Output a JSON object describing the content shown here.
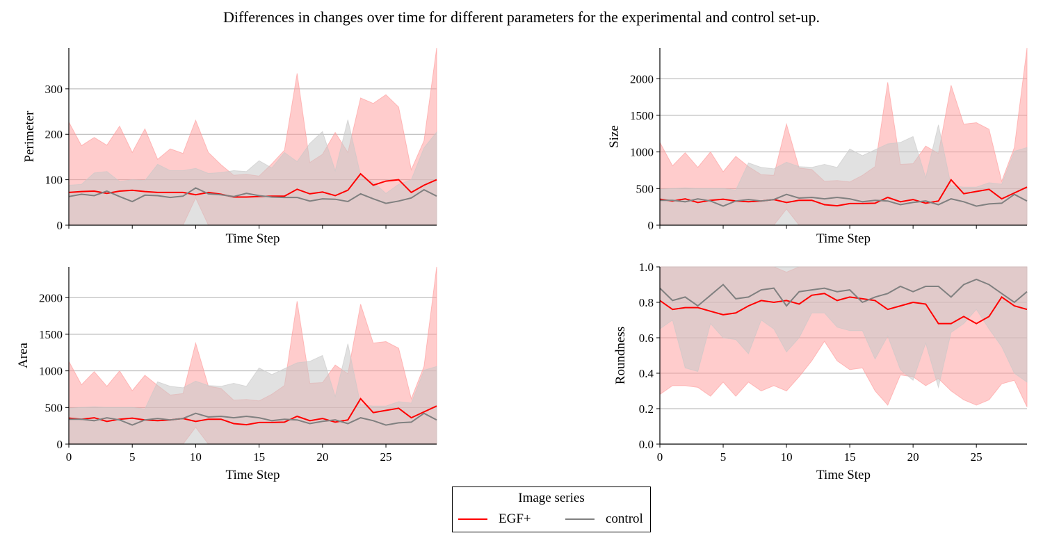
{
  "title": "Differences in changes over time for different parameters for the experimental and control set-up.",
  "legend": {
    "title": "Image series",
    "entries": [
      {
        "label": "EGF+",
        "color": "#ff0000"
      },
      {
        "label": "control",
        "color": "#808080"
      }
    ]
  },
  "colors": {
    "egf_line": "#ff0000",
    "egf_band": "#ff9999",
    "control_line": "#808080",
    "control_band": "#c8c8c8"
  },
  "chart_data": [
    {
      "type": "line",
      "ylabel": "Perimeter",
      "xlabel": "Time Step",
      "xlim": [
        0,
        29
      ],
      "ylim": [
        0,
        390
      ],
      "yticks": [
        0,
        100,
        200,
        300
      ],
      "x_ticklabels_shown": false,
      "grid": "y",
      "x": [
        0,
        1,
        2,
        3,
        4,
        5,
        6,
        7,
        8,
        9,
        10,
        11,
        12,
        13,
        14,
        15,
        16,
        17,
        18,
        19,
        20,
        21,
        22,
        23,
        24,
        25,
        26,
        27,
        28,
        29
      ],
      "series": [
        {
          "name": "EGF+",
          "values": [
            72,
            74,
            75,
            70,
            75,
            77,
            74,
            72,
            72,
            72,
            67,
            72,
            68,
            62,
            62,
            63,
            64,
            64,
            79,
            69,
            73,
            65,
            77,
            113,
            88,
            97,
            100,
            72,
            88,
            100
          ],
          "band_lower": [
            0,
            0,
            0,
            0,
            0,
            0,
            0,
            0,
            0,
            0,
            60,
            0,
            0,
            0,
            0,
            0,
            0,
            0,
            0,
            0,
            0,
            0,
            0,
            0,
            0,
            0,
            0,
            0,
            0,
            0
          ],
          "band_upper": [
            227,
            175,
            193,
            176,
            218,
            160,
            212,
            145,
            168,
            158,
            231,
            160,
            133,
            110,
            112,
            108,
            135,
            165,
            334,
            138,
            156,
            204,
            160,
            280,
            268,
            287,
            260,
            122,
            186,
            390
          ]
        },
        {
          "name": "control",
          "values": [
            63,
            68,
            65,
            75,
            63,
            52,
            66,
            65,
            61,
            64,
            82,
            69,
            67,
            63,
            70,
            65,
            62,
            61,
            61,
            53,
            58,
            57,
            52,
            69,
            58,
            48,
            53,
            60,
            78,
            64
          ],
          "band_lower": [
            0,
            0,
            0,
            0,
            0,
            0,
            0,
            0,
            0,
            0,
            0,
            0,
            0,
            0,
            0,
            0,
            0,
            0,
            0,
            0,
            0,
            0,
            0,
            0,
            0,
            0,
            0,
            0,
            0,
            0
          ],
          "band_upper": [
            88,
            90,
            115,
            118,
            96,
            100,
            98,
            134,
            120,
            120,
            125,
            114,
            116,
            120,
            118,
            142,
            126,
            160,
            140,
            180,
            206,
            120,
            232,
            110,
            95,
            70,
            90,
            100,
            170,
            205
          ]
        }
      ]
    },
    {
      "type": "line",
      "ylabel": "Size",
      "xlabel": "Time Step",
      "xlim": [
        0,
        29
      ],
      "ylim": [
        0,
        2420
      ],
      "yticks": [
        0,
        500,
        1000,
        1500,
        2000
      ],
      "x_ticklabels_shown": false,
      "grid": "y",
      "x": [
        0,
        1,
        2,
        3,
        4,
        5,
        6,
        7,
        8,
        9,
        10,
        11,
        12,
        13,
        14,
        15,
        16,
        17,
        18,
        19,
        20,
        21,
        22,
        23,
        24,
        25,
        26,
        27,
        28,
        29
      ],
      "series": [
        {
          "name": "EGF+",
          "values": [
            355,
            330,
            360,
            310,
            340,
            355,
            330,
            320,
            330,
            350,
            310,
            340,
            340,
            280,
            265,
            295,
            295,
            300,
            380,
            320,
            350,
            300,
            330,
            620,
            430,
            460,
            490,
            360,
            440,
            520
          ],
          "band_lower": [
            0,
            0,
            0,
            0,
            0,
            0,
            0,
            0,
            0,
            0,
            220,
            0,
            0,
            0,
            0,
            0,
            0,
            0,
            0,
            0,
            0,
            0,
            0,
            0,
            0,
            0,
            0,
            0,
            0,
            0
          ],
          "band_upper": [
            1130,
            810,
            990,
            790,
            1000,
            730,
            940,
            800,
            690,
            680,
            1380,
            780,
            760,
            600,
            610,
            590,
            680,
            800,
            1950,
            830,
            840,
            1080,
            980,
            1910,
            1380,
            1400,
            1310,
            600,
            1060,
            2420
          ]
        },
        {
          "name": "control",
          "values": [
            340,
            340,
            320,
            360,
            330,
            260,
            330,
            350,
            330,
            350,
            420,
            370,
            380,
            360,
            380,
            360,
            320,
            340,
            330,
            280,
            310,
            330,
            280,
            360,
            320,
            260,
            290,
            300,
            420,
            330
          ],
          "band_lower": [
            0,
            0,
            0,
            0,
            0,
            0,
            0,
            0,
            0,
            0,
            0,
            0,
            0,
            0,
            0,
            0,
            0,
            0,
            0,
            0,
            0,
            0,
            0,
            0,
            0,
            0,
            0,
            0,
            0,
            0
          ],
          "band_upper": [
            490,
            500,
            510,
            500,
            500,
            500,
            480,
            850,
            790,
            770,
            860,
            800,
            790,
            830,
            790,
            1040,
            950,
            1030,
            1110,
            1130,
            1210,
            650,
            1370,
            540,
            520,
            520,
            580,
            560,
            1010,
            1060
          ]
        }
      ]
    },
    {
      "type": "line",
      "ylabel": "Area",
      "xlabel": "Time Step",
      "xlim": [
        0,
        29
      ],
      "ylim": [
        0,
        2420
      ],
      "yticks": [
        0,
        500,
        1000,
        1500,
        2000
      ],
      "xticks": [
        0,
        5,
        10,
        15,
        20,
        25
      ],
      "x_ticklabels_shown": true,
      "grid": "y",
      "x": [
        0,
        1,
        2,
        3,
        4,
        5,
        6,
        7,
        8,
        9,
        10,
        11,
        12,
        13,
        14,
        15,
        16,
        17,
        18,
        19,
        20,
        21,
        22,
        23,
        24,
        25,
        26,
        27,
        28,
        29
      ],
      "series": [
        {
          "name": "EGF+",
          "values": [
            355,
            340,
            360,
            310,
            340,
            355,
            330,
            320,
            330,
            350,
            310,
            340,
            340,
            280,
            265,
            295,
            295,
            300,
            380,
            320,
            350,
            300,
            330,
            620,
            430,
            460,
            490,
            360,
            440,
            520
          ],
          "band_lower": [
            0,
            0,
            0,
            0,
            0,
            0,
            0,
            0,
            0,
            0,
            230,
            0,
            0,
            0,
            0,
            0,
            0,
            0,
            0,
            0,
            0,
            0,
            0,
            0,
            0,
            0,
            0,
            0,
            0,
            0
          ],
          "band_upper": [
            1130,
            810,
            990,
            790,
            1000,
            730,
            940,
            800,
            670,
            690,
            1380,
            790,
            760,
            600,
            610,
            590,
            680,
            800,
            1950,
            830,
            840,
            1080,
            960,
            1910,
            1380,
            1400,
            1310,
            620,
            1060,
            2420
          ]
        },
        {
          "name": "control",
          "values": [
            340,
            340,
            320,
            360,
            330,
            260,
            330,
            350,
            330,
            350,
            420,
            370,
            380,
            360,
            380,
            360,
            320,
            340,
            330,
            280,
            310,
            330,
            280,
            360,
            320,
            260,
            290,
            300,
            420,
            330
          ],
          "band_lower": [
            0,
            0,
            0,
            0,
            0,
            0,
            0,
            0,
            0,
            0,
            0,
            0,
            0,
            0,
            0,
            0,
            0,
            0,
            0,
            0,
            0,
            0,
            0,
            0,
            0,
            0,
            0,
            0,
            0,
            0
          ],
          "band_upper": [
            490,
            500,
            510,
            500,
            500,
            500,
            480,
            850,
            790,
            770,
            860,
            800,
            790,
            830,
            790,
            1040,
            950,
            1030,
            1110,
            1130,
            1210,
            650,
            1370,
            540,
            520,
            520,
            580,
            560,
            1010,
            1060
          ]
        }
      ]
    },
    {
      "type": "line",
      "ylabel": "Roundness",
      "xlabel": "Time Step",
      "xlim": [
        0,
        29
      ],
      "ylim": [
        0.0,
        1.0
      ],
      "yticks": [
        0.0,
        0.2,
        0.4,
        0.6,
        0.8,
        1.0
      ],
      "xticks": [
        0,
        5,
        10,
        15,
        20,
        25
      ],
      "x_ticklabels_shown": true,
      "grid": "y",
      "x": [
        0,
        1,
        2,
        3,
        4,
        5,
        6,
        7,
        8,
        9,
        10,
        11,
        12,
        13,
        14,
        15,
        16,
        17,
        18,
        19,
        20,
        21,
        22,
        23,
        24,
        25,
        26,
        27,
        28,
        29
      ],
      "series": [
        {
          "name": "EGF+",
          "values": [
            0.81,
            0.76,
            0.77,
            0.77,
            0.75,
            0.73,
            0.74,
            0.78,
            0.81,
            0.8,
            0.81,
            0.79,
            0.84,
            0.85,
            0.81,
            0.83,
            0.82,
            0.81,
            0.76,
            0.78,
            0.8,
            0.79,
            0.68,
            0.68,
            0.72,
            0.68,
            0.72,
            0.83,
            0.78,
            0.76
          ],
          "band_lower": [
            0.28,
            0.33,
            0.33,
            0.32,
            0.27,
            0.35,
            0.27,
            0.35,
            0.3,
            0.33,
            0.3,
            0.38,
            0.47,
            0.58,
            0.47,
            0.42,
            0.43,
            0.3,
            0.22,
            0.39,
            0.38,
            0.33,
            0.37,
            0.3,
            0.25,
            0.22,
            0.25,
            0.34,
            0.36,
            0.21
          ],
          "band_upper": [
            1.0,
            1.0,
            1.0,
            1.0,
            1.0,
            1.0,
            1.0,
            1.0,
            1.0,
            1.0,
            0.97,
            1.0,
            1.0,
            1.0,
            1.0,
            1.0,
            1.0,
            1.0,
            1.0,
            1.0,
            1.0,
            1.0,
            1.0,
            1.0,
            1.0,
            1.0,
            1.0,
            1.0,
            1.0,
            1.0
          ]
        },
        {
          "name": "control",
          "values": [
            0.88,
            0.81,
            0.83,
            0.78,
            0.84,
            0.9,
            0.82,
            0.83,
            0.87,
            0.88,
            0.78,
            0.86,
            0.87,
            0.88,
            0.86,
            0.87,
            0.8,
            0.83,
            0.85,
            0.89,
            0.86,
            0.89,
            0.89,
            0.83,
            0.9,
            0.93,
            0.9,
            0.85,
            0.8,
            0.86
          ],
          "band_lower": [
            0.65,
            0.7,
            0.43,
            0.41,
            0.68,
            0.6,
            0.59,
            0.51,
            0.7,
            0.65,
            0.52,
            0.6,
            0.74,
            0.74,
            0.66,
            0.64,
            0.64,
            0.48,
            0.61,
            0.42,
            0.36,
            0.57,
            0.32,
            0.63,
            0.68,
            0.76,
            0.65,
            0.55,
            0.4,
            0.35
          ],
          "band_upper": [
            1.0,
            1.0,
            1.0,
            1.0,
            1.0,
            1.0,
            1.0,
            1.0,
            1.0,
            1.0,
            1.0,
            1.0,
            1.0,
            1.0,
            1.0,
            1.0,
            1.0,
            1.0,
            1.0,
            1.0,
            1.0,
            1.0,
            1.0,
            1.0,
            1.0,
            1.0,
            1.0,
            1.0,
            1.0,
            1.0
          ]
        }
      ]
    }
  ]
}
